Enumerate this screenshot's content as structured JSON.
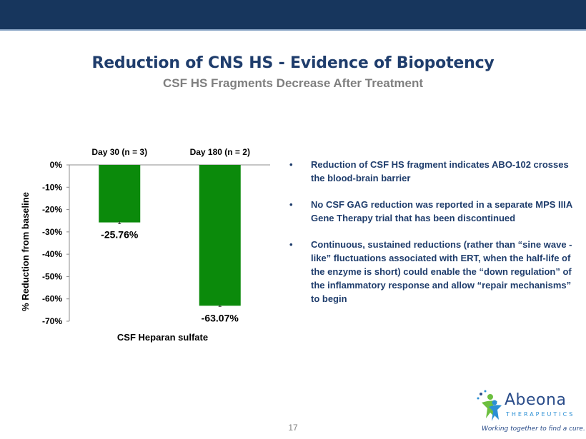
{
  "slide": {
    "title": "Reduction of CNS HS - Evidence of Biopotency",
    "subtitle": "CSF HS Fragments Decrease After Treatment",
    "page_number": "17"
  },
  "bullets": [
    "Reduction of CSF HS fragment indicates ABO-102 crosses the blood-brain barrier",
    "No CSF GAG reduction was reported in a separate MPS IIIA Gene Therapy trial that has been discontinued",
    "Continuous, sustained reductions (rather than “sine wave -like” fluctuations associated with ERT, when the half-life of the enzyme is short) could enable the “down regulation” of the inflammatory response and allow “repair mechanisms” to begin"
  ],
  "bullet_symbol": "•",
  "logo": {
    "name": "Abeona",
    "sub": "THERAPEUTICS",
    "tagline": "Working together to find a cure."
  },
  "chart_data": {
    "type": "bar",
    "categories": [
      "Day 30 (n = 3)",
      "Day 180 (n = 2)"
    ],
    "values": [
      -25.76,
      -63.07
    ],
    "data_labels": [
      "-25.76%",
      "-63.07%"
    ],
    "error": [
      0.6,
      0.3
    ],
    "title": "",
    "xlabel": "CSF Heparan sulfate",
    "ylabel": "% Reduction from baseline",
    "ylim": [
      -70,
      0
    ],
    "yticks": [
      0,
      -10,
      -20,
      -30,
      -40,
      -50,
      -60,
      -70
    ],
    "ytick_labels": [
      "0%",
      "-10%",
      "-20%",
      "-30%",
      "-40%",
      "-50%",
      "-60%",
      "-70%"
    ],
    "category_position": "top",
    "grid": false,
    "bar_color": "#0b8a0b"
  },
  "colors": {
    "header_bar": "#17365d",
    "title": "#1f3d6c",
    "subtitle": "#7f7f7f",
    "bullet_text": "#1f3d6c"
  }
}
